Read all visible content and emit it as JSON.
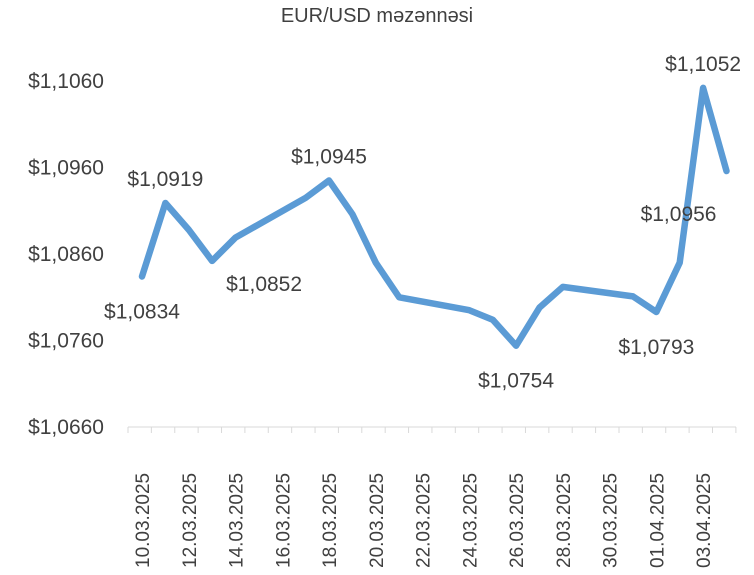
{
  "chart_data": {
    "type": "line",
    "title": "EUR/USD məzənnəsi",
    "xlabel": "",
    "ylabel": "",
    "ylim": [
      1.066,
      1.106
    ],
    "y_ticks": [
      "$1,0660",
      "$1,0760",
      "$1,0860",
      "$1,0960",
      "$1,1060"
    ],
    "x_tick_labels": [
      "10.03.2025",
      "12.03.2025",
      "14.03.2025",
      "16.03.2025",
      "18.03.2025",
      "20.03.2025",
      "22.03.2025",
      "24.03.2025",
      "26.03.2025",
      "28.03.2025",
      "30.03.2025",
      "01.04.2025",
      "03.04.2025"
    ],
    "grid": false,
    "line_color": "#5B9BD5",
    "series": [
      {
        "dates": [
          "10.03.2025",
          "11.03.2025",
          "12.03.2025",
          "13.03.2025",
          "14.03.2025",
          "17.03.2025",
          "18.03.2025",
          "19.03.2025",
          "20.03.2025",
          "21.03.2025",
          "24.03.2025",
          "25.03.2025",
          "26.03.2025",
          "27.03.2025",
          "28.03.2025",
          "31.03.2025",
          "01.04.2025",
          "02.04.2025",
          "03.04.2025",
          "04.04.2025"
        ],
        "values": [
          1.0834,
          1.0919,
          1.0888,
          1.0852,
          1.0879,
          1.0925,
          1.0945,
          1.0906,
          1.085,
          1.081,
          1.0795,
          1.0784,
          1.0754,
          1.0798,
          1.0822,
          1.0811,
          1.0793,
          1.085,
          1.1052,
          1.0956
        ]
      }
    ],
    "data_labels": [
      {
        "date": "10.03.2025",
        "text": "$1,0834",
        "pos": "below"
      },
      {
        "date": "11.03.2025",
        "text": "$1,0919",
        "pos": "above"
      },
      {
        "date": "13.03.2025",
        "text": "$1,0852",
        "pos": "below-right"
      },
      {
        "date": "18.03.2025",
        "text": "$1,0945",
        "pos": "above"
      },
      {
        "date": "26.03.2025",
        "text": "$1,0754",
        "pos": "below"
      },
      {
        "date": "01.04.2025",
        "text": "$1,0793",
        "pos": "below"
      },
      {
        "date": "03.04.2025",
        "text": "$1,1052",
        "pos": "above"
      },
      {
        "date": "04.04.2025",
        "text": "$1,0956",
        "pos": "below-left"
      }
    ]
  }
}
